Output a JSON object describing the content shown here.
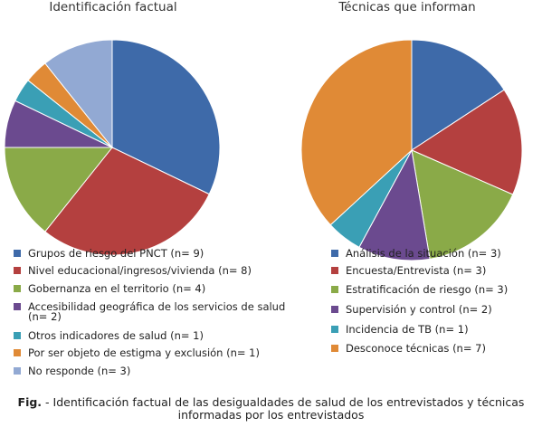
{
  "chart_data": [
    {
      "type": "pie",
      "title": "Identificación factual",
      "slices": [
        {
          "label": "Grupos de riesgo del PNCT (n= 9)",
          "value": 9,
          "color": "#3e6aa9"
        },
        {
          "label": "Nivel educacional/ingresos/vivienda (n= 8)",
          "value": 8,
          "color": "#b4403f"
        },
        {
          "label": "Gobernanza en el territorio (n= 4)",
          "value": 4,
          "color": "#8aaa48"
        },
        {
          "label": "Accesibilidad geográfica de los servicios de salud (n= 2)",
          "value": 2,
          "color": "#6b4a8f"
        },
        {
          "label": "Otros indicadores de salud (n= 1)",
          "value": 1,
          "color": "#3a9fb5"
        },
        {
          "label": "Por ser objeto de estigma y exclusión (n= 1)",
          "value": 1,
          "color": "#e08a36"
        },
        {
          "label": "No responde (n= 3)",
          "value": 3,
          "color": "#92a9d3"
        }
      ]
    },
    {
      "type": "pie",
      "title": "Técnicas que informan",
      "slices": [
        {
          "label": "Análisis de la situación (n= 3)",
          "value": 3,
          "color": "#3e6aa9"
        },
        {
          "label": "Encuesta/Entrevista (n= 3)",
          "value": 3,
          "color": "#b4403f"
        },
        {
          "label": "Estratificación de riesgo (n= 3)",
          "value": 3,
          "color": "#8aaa48"
        },
        {
          "label": "Supervisión y control (n= 2)",
          "value": 2,
          "color": "#6b4a8f"
        },
        {
          "label": "Incidencia de TB (n= 1)",
          "value": 1,
          "color": "#3a9fb5"
        },
        {
          "label": "Desconoce técnicas (n= 7)",
          "value": 7,
          "color": "#e08a36"
        }
      ]
    }
  ],
  "caption": {
    "prefix": "Fig.",
    "text": " - Identificación factual de las desigualdades de salud de los entrevistados y técnicas informadas por los entrevistados"
  }
}
